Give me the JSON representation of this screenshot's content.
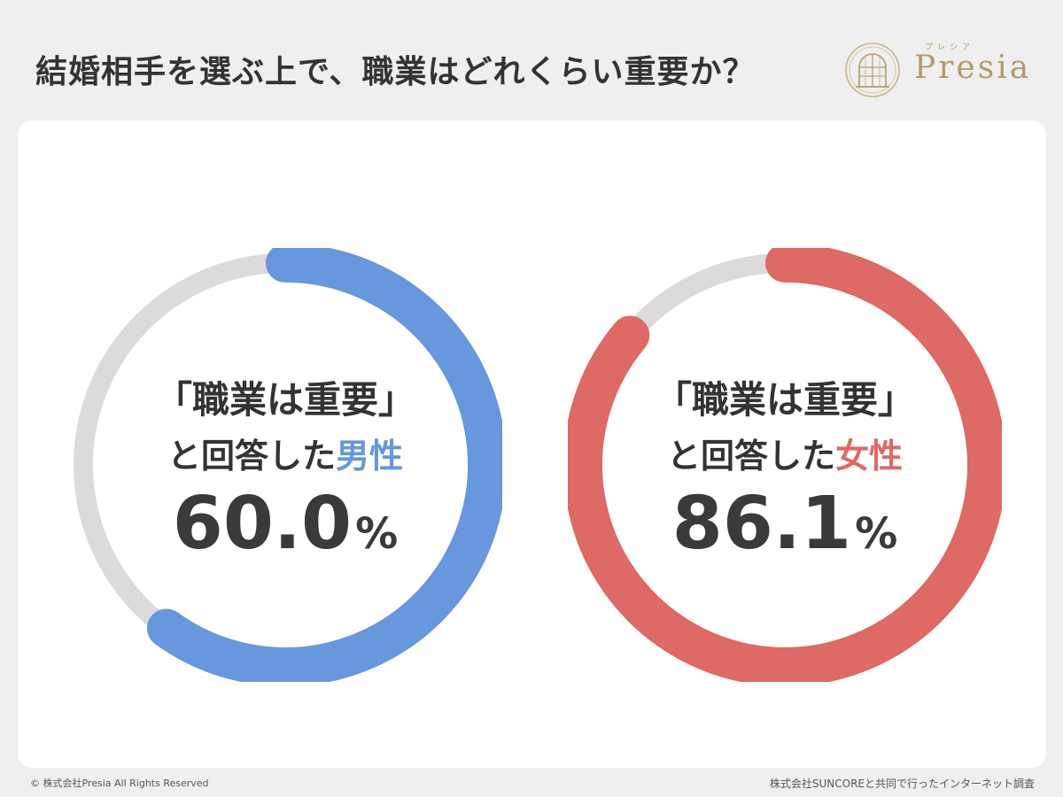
{
  "header": {
    "title": "結婚相手を選ぶ上で、職業はどれくらい重要か？",
    "logo_text": "Presia",
    "logo_kana": "プレシア"
  },
  "chart_data": {
    "type": "pie",
    "track_color": "#dcdadd",
    "charts": [
      {
        "label_line1": "「職業は重要」",
        "label_line2_prefix": "と回答した",
        "label_line2_highlight": "男性",
        "value_text": "60.0",
        "unit": "%",
        "value": 60.0,
        "color": "#6797dc"
      },
      {
        "label_line1": "「職業は重要」",
        "label_line2_prefix": "と回答した",
        "label_line2_highlight": "女性",
        "value_text": "86.1",
        "unit": "%",
        "value": 86.1,
        "color": "#dd6a65"
      }
    ]
  },
  "footer": {
    "copyright": "© 株式会社Presia All Rights Reserved",
    "source": "株式会社SUNCOREと共同で行ったインターネット調査"
  }
}
